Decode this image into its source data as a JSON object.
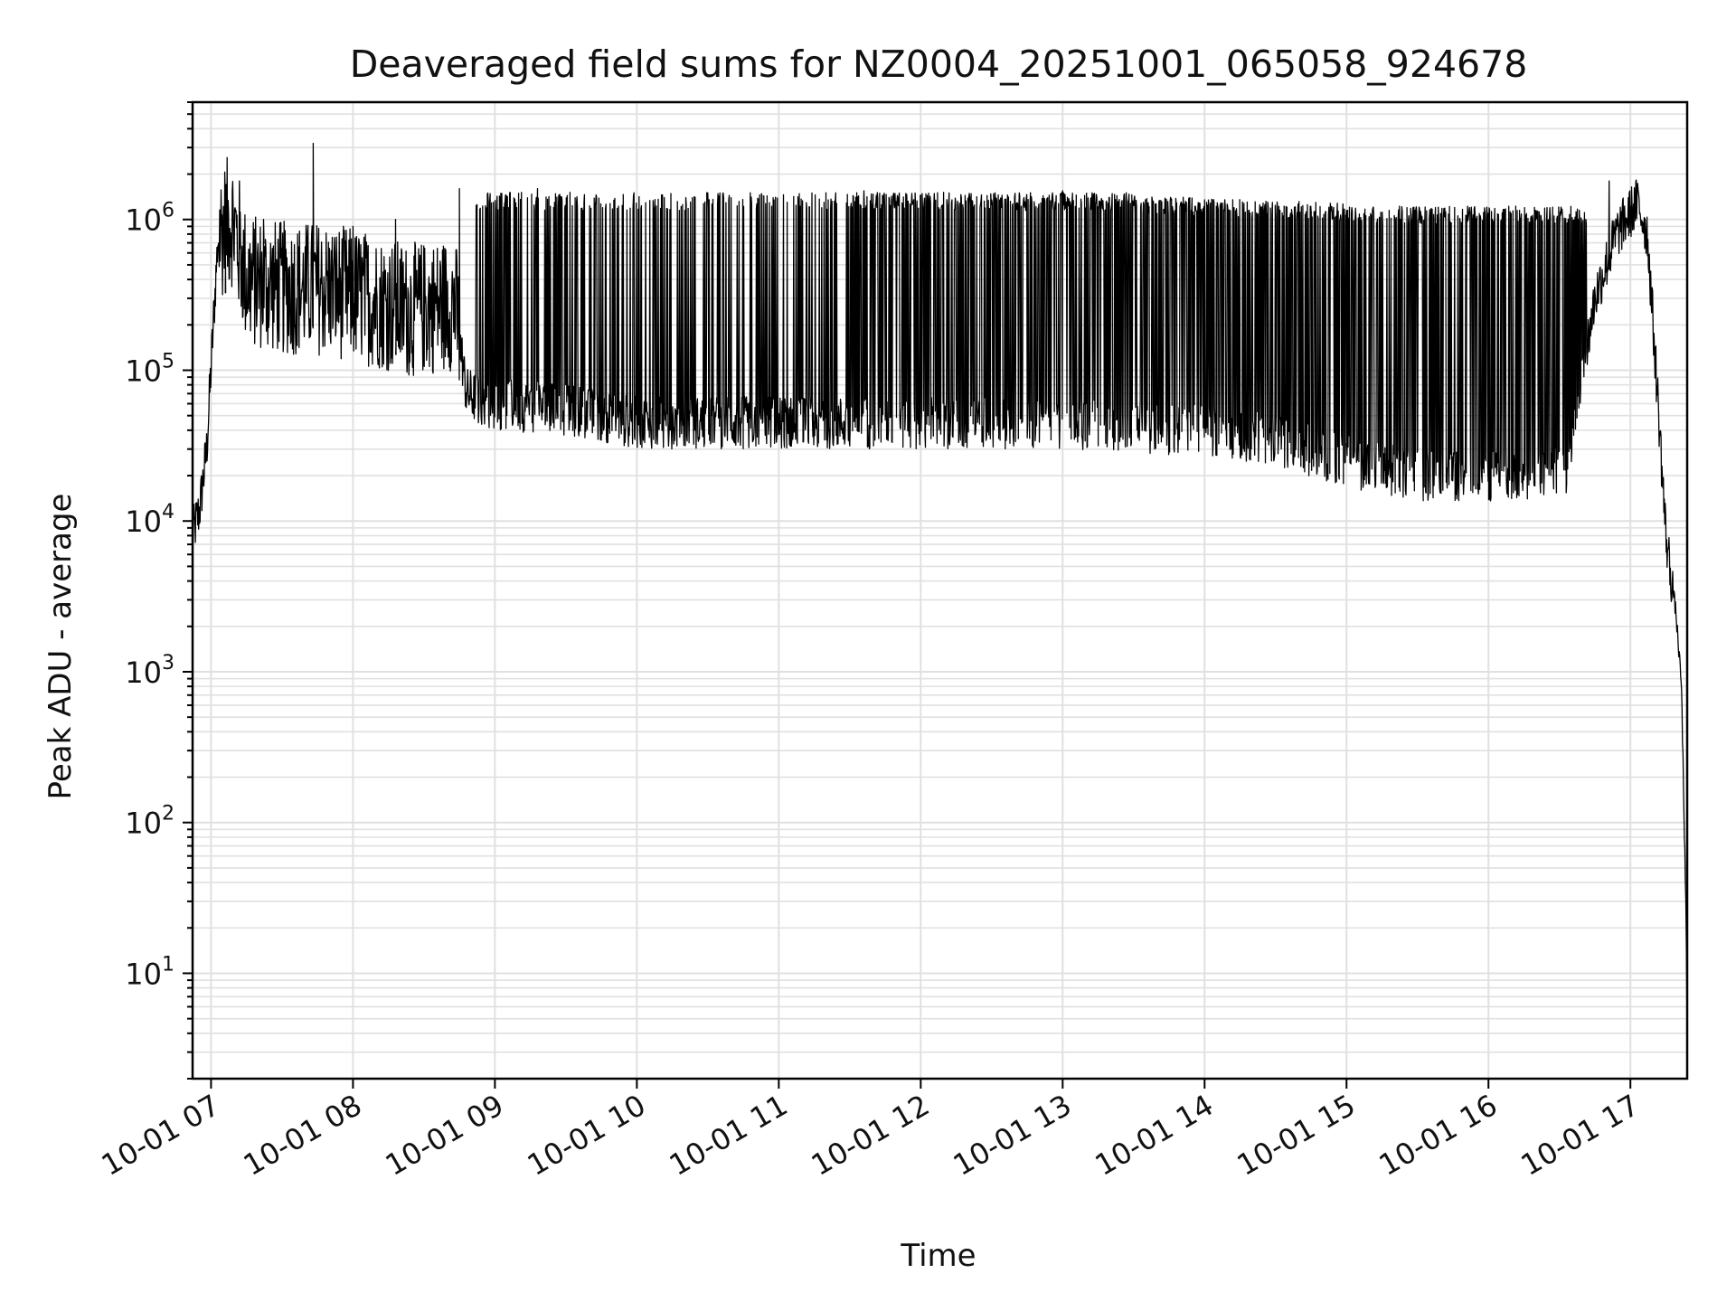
{
  "chart_data": {
    "type": "line",
    "title": "Deaveraged field sums for NZ0004_20251001_065058_924678",
    "xlabel": "Time",
    "ylabel": "Peak ADU - average",
    "yscale": "log",
    "ylim": [
      2,
      6000000
    ],
    "xlim_hours": [
      6.87,
      17.4
    ],
    "grid": true,
    "legend": "none",
    "line_color": "#000000",
    "grid_color": "#e0e0e0",
    "x_ticks": [
      {
        "hour": 7,
        "label": "10-01 07"
      },
      {
        "hour": 8,
        "label": "10-01 08"
      },
      {
        "hour": 9,
        "label": "10-01 09"
      },
      {
        "hour": 10,
        "label": "10-01 10"
      },
      {
        "hour": 11,
        "label": "10-01 11"
      },
      {
        "hour": 12,
        "label": "10-01 12"
      },
      {
        "hour": 13,
        "label": "10-01 13"
      },
      {
        "hour": 14,
        "label": "10-01 14"
      },
      {
        "hour": 15,
        "label": "10-01 15"
      },
      {
        "hour": 16,
        "label": "10-01 16"
      },
      {
        "hour": 17,
        "label": "10-01 17"
      }
    ],
    "y_ticks": [
      {
        "value": 10,
        "base": "10",
        "exp": "1"
      },
      {
        "value": 100,
        "base": "10",
        "exp": "2"
      },
      {
        "value": 1000,
        "base": "10",
        "exp": "3"
      },
      {
        "value": 10000,
        "base": "10",
        "exp": "4"
      },
      {
        "value": 100000,
        "base": "10",
        "exp": "5"
      },
      {
        "value": 1000000,
        "base": "10",
        "exp": "6"
      }
    ],
    "series": [
      {
        "name": "deaveraged field sums",
        "baseline_points": [
          {
            "hour": 6.87,
            "value": 8000
          },
          {
            "hour": 6.92,
            "value": 12000
          },
          {
            "hour": 6.97,
            "value": 30000
          },
          {
            "hour": 7.05,
            "value": 800000
          },
          {
            "hour": 7.15,
            "value": 1000000
          },
          {
            "hour": 7.25,
            "value": 400000
          },
          {
            "hour": 7.5,
            "value": 350000
          },
          {
            "hour": 7.8,
            "value": 350000
          },
          {
            "hour": 8.1,
            "value": 300000
          },
          {
            "hour": 8.4,
            "value": 250000
          },
          {
            "hour": 8.72,
            "value": 280000
          },
          {
            "hour": 8.8,
            "value": 70000
          },
          {
            "hour": 9.0,
            "value": 60000
          },
          {
            "hour": 9.5,
            "value": 55000
          },
          {
            "hour": 10.0,
            "value": 45000
          },
          {
            "hour": 11.0,
            "value": 45000
          },
          {
            "hour": 12.0,
            "value": 45000
          },
          {
            "hour": 13.0,
            "value": 45000
          },
          {
            "hour": 14.0,
            "value": 40000
          },
          {
            "hour": 14.5,
            "value": 35000
          },
          {
            "hour": 15.0,
            "value": 25000
          },
          {
            "hour": 15.5,
            "value": 20000
          },
          {
            "hour": 16.0,
            "value": 20000
          },
          {
            "hour": 16.55,
            "value": 22000
          },
          {
            "hour": 16.75,
            "value": 300000
          },
          {
            "hour": 16.9,
            "value": 800000
          },
          {
            "hour": 17.05,
            "value": 1300000
          },
          {
            "hour": 17.12,
            "value": 800000
          },
          {
            "hour": 17.2,
            "value": 50000
          },
          {
            "hour": 17.25,
            "value": 8000
          },
          {
            "hour": 17.32,
            "value": 2500
          },
          {
            "hour": 17.36,
            "value": 800
          },
          {
            "hour": 17.39,
            "value": 30
          },
          {
            "hour": 17.4,
            "value": 4
          }
        ],
        "spike_points": [
          {
            "hour": 7.1,
            "value": 1500000
          },
          {
            "hour": 7.2,
            "value": 1800000
          },
          {
            "hour": 7.37,
            "value": 1000000
          },
          {
            "hour": 7.72,
            "value": 3200000
          },
          {
            "hour": 8.0,
            "value": 900000
          },
          {
            "hour": 8.3,
            "value": 1000000
          },
          {
            "hour": 8.75,
            "value": 1600000
          },
          {
            "hour": 8.95,
            "value": 1500000
          },
          {
            "hour": 9.3,
            "value": 1600000
          },
          {
            "hour": 10.5,
            "value": 1500000
          },
          {
            "hour": 11.6,
            "value": 1550000
          },
          {
            "hour": 12.2,
            "value": 1500000
          },
          {
            "hour": 13.0,
            "value": 1550000
          },
          {
            "hour": 14.0,
            "value": 1350000
          },
          {
            "hour": 15.0,
            "value": 1150000
          },
          {
            "hour": 16.0,
            "value": 1100000
          },
          {
            "hour": 16.85,
            "value": 1800000
          }
        ]
      }
    ]
  }
}
